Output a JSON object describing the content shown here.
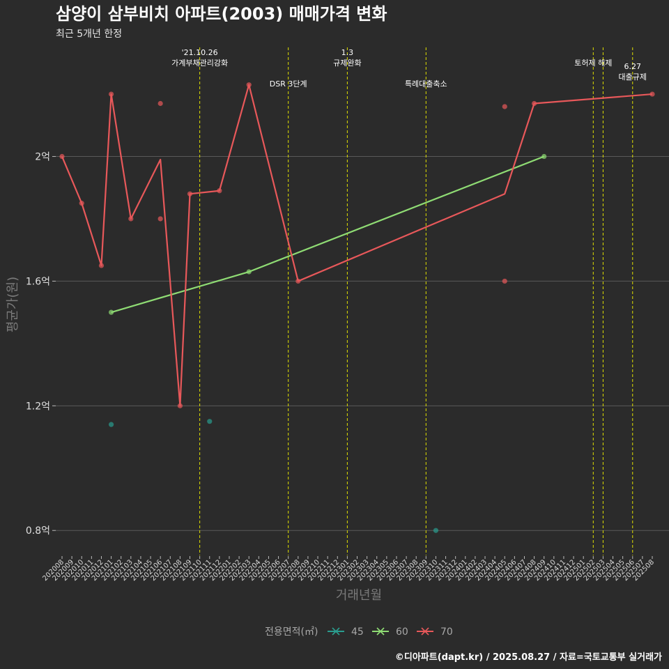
{
  "chart_data": {
    "type": "line",
    "title": "삼양이 삼부비치 아파트(2003) 매매가격 변화",
    "subtitle": "최근 5개년 한정",
    "xlabel": "거래년월",
    "ylabel": "평균가(원)",
    "caption": "©디아파트(dapt.kr) / 2025.08.27 / 자료=국토교통부 실거래가",
    "legend_title": "전용면적(㎡)",
    "legend_position": "bottom",
    "grid": true,
    "ylim": [
      0.72,
      2.35
    ],
    "yticks": [
      {
        "value": 0.8,
        "label": "0.8억"
      },
      {
        "value": 1.2,
        "label": "1.2억"
      },
      {
        "value": 1.6,
        "label": "1.6억"
      },
      {
        "value": 2.0,
        "label": "2억"
      }
    ],
    "categories": [
      "202008",
      "202009",
      "202010",
      "202011",
      "202012",
      "202101",
      "202102",
      "202103",
      "202104",
      "202105",
      "202106",
      "202107",
      "202108",
      "202109",
      "202110",
      "202111",
      "202112",
      "202201",
      "202202",
      "202203",
      "202204",
      "202205",
      "202206",
      "202207",
      "202208",
      "202209",
      "202210",
      "202211",
      "202212",
      "202301",
      "202302",
      "202303",
      "202304",
      "202305",
      "202306",
      "202307",
      "202308",
      "202309",
      "202310",
      "202311",
      "202312",
      "202401",
      "202402",
      "202403",
      "202404",
      "202405",
      "202406",
      "202407",
      "202408",
      "202409",
      "202410",
      "202411",
      "202412",
      "202501",
      "202502",
      "202503",
      "202504",
      "202505",
      "202506",
      "202507",
      "202508"
    ],
    "events": [
      {
        "category": "202110",
        "label": [
          "'21.10.26",
          "가계부채관리강화"
        ],
        "row": 0
      },
      {
        "category": "202207",
        "label": [
          "DSR 3단계"
        ],
        "row": 1
      },
      {
        "category": "202301",
        "label": [
          "1.3",
          "규제완화"
        ],
        "row": 0
      },
      {
        "category": "202309",
        "label": [
          "특례대출축소"
        ],
        "row": 1
      },
      {
        "category": "202502",
        "label": [
          "토허제 해제"
        ],
        "row": 0
      },
      {
        "category": "202503",
        "label": [],
        "row": 0
      },
      {
        "category": "202506",
        "label": [
          "6.27",
          "대출규제"
        ],
        "row": 2
      }
    ],
    "series": [
      {
        "name": "45",
        "color": "#2a9d8f",
        "line": [],
        "points": [
          {
            "x": "202101",
            "y": 1.14
          },
          {
            "x": "202111",
            "y": 1.15
          },
          {
            "x": "202310",
            "y": 0.8
          }
        ]
      },
      {
        "name": "60",
        "color": "#8fdc74",
        "line": [
          {
            "x": "202101",
            "y": 1.5
          },
          {
            "x": "202203",
            "y": 1.63
          },
          {
            "x": "202409",
            "y": 2.0
          }
        ],
        "points": [
          {
            "x": "202101",
            "y": 1.5
          },
          {
            "x": "202203",
            "y": 1.63
          },
          {
            "x": "202409",
            "y": 2.0
          }
        ]
      },
      {
        "name": "70",
        "color": "#e8585a",
        "line": [
          {
            "x": "202008",
            "y": 2.0
          },
          {
            "x": "202010",
            "y": 1.85
          },
          {
            "x": "202012",
            "y": 1.65
          },
          {
            "x": "202101",
            "y": 2.2
          },
          {
            "x": "202103",
            "y": 1.8
          },
          {
            "x": "202106",
            "y": 1.99
          },
          {
            "x": "202108",
            "y": 1.2
          },
          {
            "x": "202109",
            "y": 1.88
          },
          {
            "x": "202112",
            "y": 1.89
          },
          {
            "x": "202203",
            "y": 2.23
          },
          {
            "x": "202208",
            "y": 1.6
          },
          {
            "x": "202405",
            "y": 1.88
          },
          {
            "x": "202408",
            "y": 2.17
          },
          {
            "x": "202508",
            "y": 2.2
          }
        ],
        "points": [
          {
            "x": "202008",
            "y": 2.0
          },
          {
            "x": "202010",
            "y": 1.85
          },
          {
            "x": "202012",
            "y": 1.65
          },
          {
            "x": "202101",
            "y": 2.2
          },
          {
            "x": "202103",
            "y": 1.8
          },
          {
            "x": "202106",
            "y": 2.17
          },
          {
            "x": "202106",
            "y": 1.8
          },
          {
            "x": "202108",
            "y": 1.2
          },
          {
            "x": "202109",
            "y": 1.88
          },
          {
            "x": "202112",
            "y": 1.89
          },
          {
            "x": "202203",
            "y": 2.23
          },
          {
            "x": "202208",
            "y": 1.6
          },
          {
            "x": "202405",
            "y": 2.16
          },
          {
            "x": "202405",
            "y": 1.6
          },
          {
            "x": "202408",
            "y": 2.17
          },
          {
            "x": "202508",
            "y": 2.2
          }
        ]
      }
    ]
  }
}
